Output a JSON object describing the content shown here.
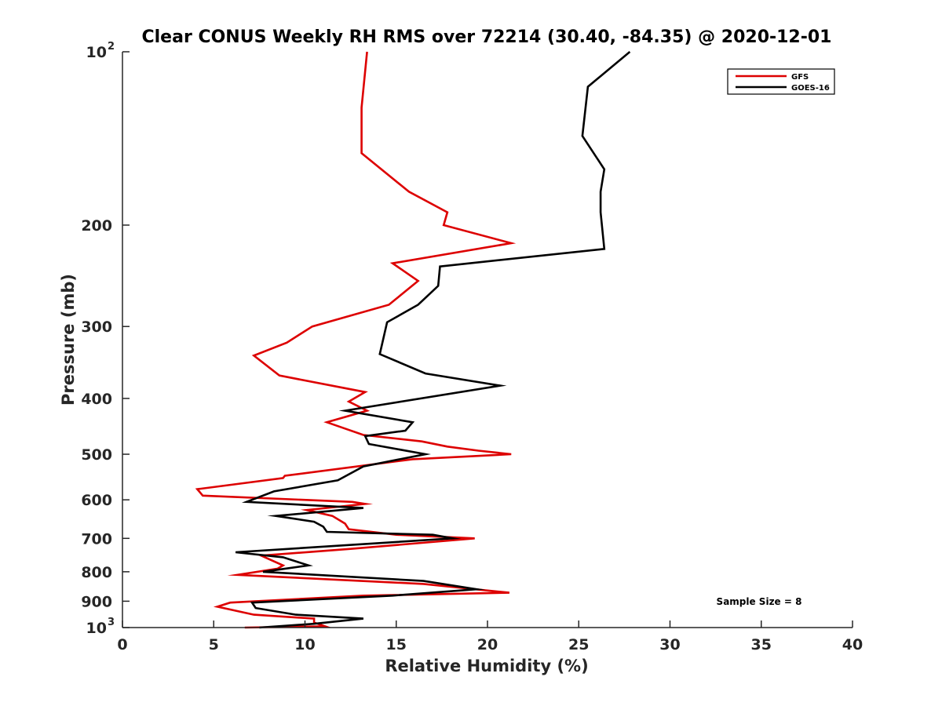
{
  "chart_data": {
    "type": "line",
    "title": "Clear CONUS Weekly RH RMS over 72214 (30.40, -84.35) @ 2020-12-01",
    "xlabel": "Relative Humidity (%)",
    "ylabel": "Pressure (mb)",
    "xlim": [
      0,
      40
    ],
    "ylim": [
      100,
      1000
    ],
    "yscale": "log",
    "yreversed": true,
    "xticks": [
      0,
      5,
      10,
      15,
      20,
      25,
      30,
      35,
      40
    ],
    "xtick_labels": [
      "0",
      "5",
      "10",
      "15",
      "20",
      "25",
      "30",
      "35",
      "40"
    ],
    "yticks": [
      {
        "value": 100,
        "base": "10",
        "exp": "2"
      },
      {
        "value": 200,
        "base": "200",
        "exp": ""
      },
      {
        "value": 300,
        "base": "300",
        "exp": ""
      },
      {
        "value": 400,
        "base": "400",
        "exp": ""
      },
      {
        "value": 500,
        "base": "500",
        "exp": ""
      },
      {
        "value": 600,
        "base": "600",
        "exp": ""
      },
      {
        "value": 700,
        "base": "700",
        "exp": ""
      },
      {
        "value": 800,
        "base": "800",
        "exp": ""
      },
      {
        "value": 900,
        "base": "900",
        "exp": ""
      },
      {
        "value": 1000,
        "base": "10",
        "exp": "3"
      }
    ],
    "legend_position": "top-right",
    "grid": false,
    "annotation": "Sample Size = 8",
    "series": [
      {
        "name": "GFS",
        "color": "#dd0000",
        "points": [
          [
            13.4,
            100
          ],
          [
            13.1,
            125
          ],
          [
            13.1,
            150
          ],
          [
            15.7,
            175
          ],
          [
            17.8,
            190
          ],
          [
            17.6,
            200
          ],
          [
            21.3,
            215
          ],
          [
            14.8,
            233
          ],
          [
            16.2,
            250
          ],
          [
            14.6,
            275
          ],
          [
            10.4,
            300
          ],
          [
            9.0,
            320
          ],
          [
            7.2,
            337
          ],
          [
            8.6,
            365
          ],
          [
            13.3,
            390
          ],
          [
            12.4,
            405
          ],
          [
            13.4,
            420
          ],
          [
            11.2,
            440
          ],
          [
            13.2,
            463
          ],
          [
            16.4,
            475
          ],
          [
            17.8,
            485
          ],
          [
            19.5,
            493
          ],
          [
            21.3,
            500
          ],
          [
            15.9,
            510
          ],
          [
            8.9,
            545
          ],
          [
            8.8,
            550
          ],
          [
            4.1,
            575
          ],
          [
            4.4,
            590
          ],
          [
            12.6,
            605
          ],
          [
            13.3,
            610
          ],
          [
            10.1,
            625
          ],
          [
            11.5,
            640
          ],
          [
            12.2,
            660
          ],
          [
            12.4,
            675
          ],
          [
            15.0,
            690
          ],
          [
            19.3,
            700
          ],
          [
            12.5,
            730
          ],
          [
            7.6,
            750
          ],
          [
            8.8,
            780
          ],
          [
            8.5,
            790
          ],
          [
            6.3,
            810
          ],
          [
            16.5,
            840
          ],
          [
            21.2,
            870
          ],
          [
            13.2,
            880
          ],
          [
            5.9,
            905
          ],
          [
            5.2,
            920
          ],
          [
            7.2,
            950
          ],
          [
            10.5,
            965
          ],
          [
            10.5,
            980
          ],
          [
            11.1,
            995
          ],
          [
            6.7,
            1000
          ]
        ]
      },
      {
        "name": "GOES-16",
        "color": "#000000",
        "points": [
          [
            27.8,
            100
          ],
          [
            25.5,
            115
          ],
          [
            25.2,
            140
          ],
          [
            26.4,
            160
          ],
          [
            26.2,
            175
          ],
          [
            26.2,
            190
          ],
          [
            26.4,
            220
          ],
          [
            17.4,
            236
          ],
          [
            17.3,
            255
          ],
          [
            16.2,
            275
          ],
          [
            14.5,
            295
          ],
          [
            14.1,
            335
          ],
          [
            16.6,
            362
          ],
          [
            20.7,
            380
          ],
          [
            12.2,
            420
          ],
          [
            15.9,
            440
          ],
          [
            15.5,
            455
          ],
          [
            13.3,
            465
          ],
          [
            13.5,
            480
          ],
          [
            16.6,
            500
          ],
          [
            13.2,
            525
          ],
          [
            11.8,
            555
          ],
          [
            8.3,
            580
          ],
          [
            6.8,
            605
          ],
          [
            13.2,
            620
          ],
          [
            8.4,
            640
          ],
          [
            10.5,
            655
          ],
          [
            11.0,
            668
          ],
          [
            11.2,
            682
          ],
          [
            17.0,
            690
          ],
          [
            18.1,
            700
          ],
          [
            6.2,
            740
          ],
          [
            8.8,
            755
          ],
          [
            10.2,
            780
          ],
          [
            7.7,
            800
          ],
          [
            16.5,
            830
          ],
          [
            19.4,
            858
          ],
          [
            14.8,
            880
          ],
          [
            7.1,
            905
          ],
          [
            7.3,
            925
          ],
          [
            9.5,
            950
          ],
          [
            13.2,
            965
          ],
          [
            10.5,
            985
          ],
          [
            7.5,
            1000
          ]
        ]
      }
    ]
  }
}
